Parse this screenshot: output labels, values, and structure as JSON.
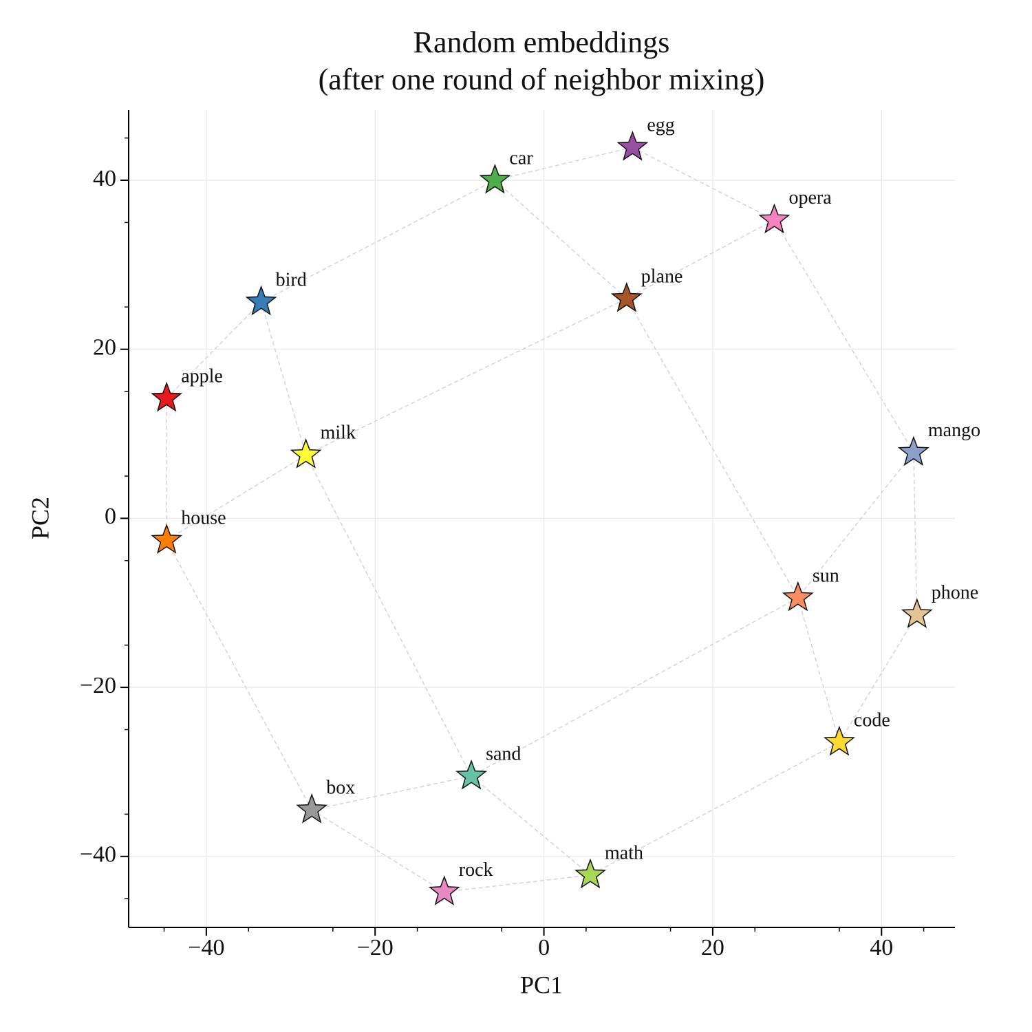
{
  "chart_data": {
    "type": "scatter",
    "title": "Random embeddings",
    "subtitle": "(after one round of neighbor mixing)",
    "x_label": "PC1",
    "y_label": "PC2",
    "labels": [
      "apple",
      "house",
      "bird",
      "milk",
      "car",
      "egg",
      "opera",
      "plane",
      "mango",
      "sun",
      "phone",
      "code",
      "sand",
      "box",
      "rock",
      "math"
    ],
    "x": [
      -44.7,
      -44.7,
      -33.5,
      -28.2,
      -5.8,
      10.5,
      27.3,
      9.8,
      43.8,
      30.1,
      44.2,
      35.0,
      -8.6,
      -27.5,
      -11.8,
      5.5
    ],
    "values": [
      14.2,
      -2.6,
      25.6,
      7.5,
      40.0,
      43.9,
      35.3,
      26.0,
      7.8,
      -9.4,
      -11.4,
      -26.5,
      -30.5,
      -34.5,
      -44.2,
      -42.2
    ],
    "colors": [
      "#e41a1c",
      "#ff7f00",
      "#377eb8",
      "#ffff33",
      "#4daf4a",
      "#984ea3",
      "#f781bf",
      "#a65628",
      "#8da0cb",
      "#fc8d62",
      "#e5c494",
      "#ffd92f",
      "#66c2a5",
      "#999999",
      "#e78ac3",
      "#a6d854"
    ],
    "edges": [
      [
        "bird",
        "car"
      ],
      [
        "car",
        "egg"
      ],
      [
        "egg",
        "opera"
      ],
      [
        "car",
        "plane"
      ],
      [
        "opera",
        "plane"
      ],
      [
        "bird",
        "apple"
      ],
      [
        "bird",
        "milk"
      ],
      [
        "apple",
        "house"
      ],
      [
        "house",
        "milk"
      ],
      [
        "milk",
        "plane"
      ],
      [
        "milk",
        "sand"
      ],
      [
        "house",
        "box"
      ],
      [
        "plane",
        "sun"
      ],
      [
        "opera",
        "mango"
      ],
      [
        "mango",
        "sun"
      ],
      [
        "mango",
        "phone"
      ],
      [
        "sun",
        "sand"
      ],
      [
        "sun",
        "code"
      ],
      [
        "phone",
        "code"
      ],
      [
        "code",
        "math"
      ],
      [
        "sand",
        "box"
      ],
      [
        "sand",
        "math"
      ],
      [
        "box",
        "rock"
      ],
      [
        "rock",
        "math"
      ]
    ],
    "xlim": [
      -49.2,
      48.7
    ],
    "ylim": [
      -48.4,
      48.3
    ],
    "xticks": [
      {
        "value": -40,
        "label": "−40"
      },
      {
        "value": -20,
        "label": "−20"
      },
      0,
      20,
      40
    ],
    "yticks": [
      {
        "value": -40,
        "label": "−40"
      },
      {
        "value": -20,
        "label": "−20"
      },
      0,
      20,
      40
    ],
    "xminorticks": [
      -45,
      -35,
      -25,
      -15,
      -5,
      5,
      15,
      25,
      35,
      45
    ],
    "yminorticks": [
      -45,
      -35,
      -25,
      -15,
      -5,
      5,
      15,
      25,
      35,
      45
    ],
    "grid": true
  }
}
